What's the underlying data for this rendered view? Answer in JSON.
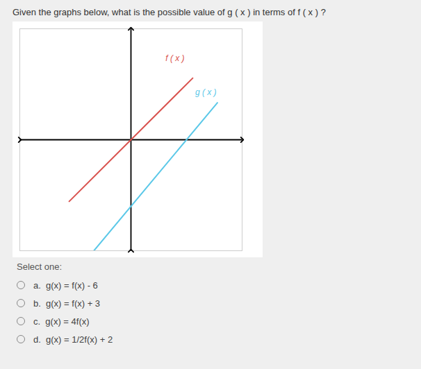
{
  "chart_data": {
    "type": "line",
    "title": "Given the graphs below, what is the possible value of g ( x ) in terms of  f ( x ) ?",
    "series": [
      {
        "name": "f ( x )",
        "color": "#d9534f",
        "x": [
          -2.5,
          2.5
        ],
        "values": [
          -2.5,
          2.5
        ]
      },
      {
        "name": "g ( x )",
        "color": "#5bc8e8",
        "x": [
          -1.5,
          3.5
        ],
        "values": [
          -4.5,
          1.5
        ]
      }
    ],
    "annotations": [
      {
        "text": "f ( x )",
        "x": 1.4,
        "y": 3.2
      },
      {
        "text": "g ( x )",
        "x": 2.6,
        "y": 1.8
      }
    ],
    "xlim": [
      -4.5,
      4.5
    ],
    "ylim": [
      -4.5,
      4.5
    ],
    "xticks": [],
    "yticks": [],
    "tick_labels": false,
    "grid": false,
    "options_heading": "Select one:",
    "options": [
      "a.  g(x) = f(x) - 6",
      "b.  g(x) = f(x) + 3",
      "c.  g(x) = 4f(x)",
      "d.  g(x) = 1/2f(x) + 2"
    ]
  }
}
